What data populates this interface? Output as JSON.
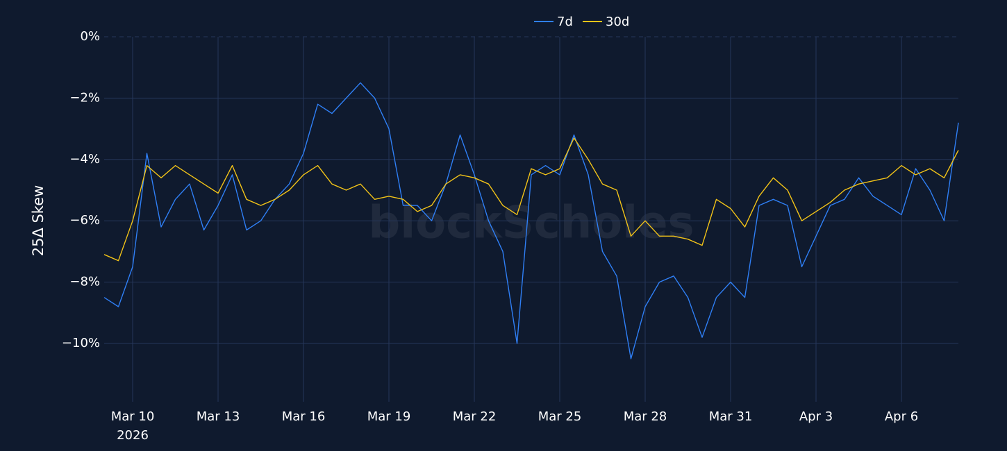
{
  "chart_data": {
    "type": "line",
    "y_label": "25Δ Skew",
    "watermark": "blockScholes",
    "x_year": "2026",
    "x": [
      "2026-03-09T00:00",
      "2026-03-09T12:00",
      "2026-03-10T00:00",
      "2026-03-10T12:00",
      "2026-03-11T00:00",
      "2026-03-11T12:00",
      "2026-03-12T00:00",
      "2026-03-12T12:00",
      "2026-03-13T00:00",
      "2026-03-13T12:00",
      "2026-03-14T00:00",
      "2026-03-14T12:00",
      "2026-03-15T00:00",
      "2026-03-15T12:00",
      "2026-03-16T00:00",
      "2026-03-16T12:00",
      "2026-03-17T00:00",
      "2026-03-17T12:00",
      "2026-03-18T00:00",
      "2026-03-18T12:00",
      "2026-03-19T00:00",
      "2026-03-19T12:00",
      "2026-03-20T00:00",
      "2026-03-20T12:00",
      "2026-03-21T00:00",
      "2026-03-21T12:00",
      "2026-03-22T00:00",
      "2026-03-22T12:00",
      "2026-03-23T00:00",
      "2026-03-23T12:00",
      "2026-03-24T00:00",
      "2026-03-24T12:00",
      "2026-03-25T00:00",
      "2026-03-25T12:00",
      "2026-03-26T00:00",
      "2026-03-26T12:00",
      "2026-03-27T00:00",
      "2026-03-27T12:00",
      "2026-03-28T00:00",
      "2026-03-28T12:00",
      "2026-03-29T00:00",
      "2026-03-29T12:00",
      "2026-03-30T00:00",
      "2026-03-30T12:00",
      "2026-03-31T00:00",
      "2026-03-31T12:00",
      "2026-04-01T00:00",
      "2026-04-01T12:00",
      "2026-04-02T00:00",
      "2026-04-02T12:00",
      "2026-04-03T00:00",
      "2026-04-03T12:00",
      "2026-04-04T00:00",
      "2026-04-04T12:00",
      "2026-04-05T00:00",
      "2026-04-05T12:00",
      "2026-04-06T00:00",
      "2026-04-06T12:00",
      "2026-04-07T00:00",
      "2026-04-07T12:00",
      "2026-04-08T00:00"
    ],
    "series": [
      {
        "name": "7d",
        "color": "#2f7ff5",
        "values": [
          -8.5,
          -8.8,
          -7.5,
          -3.8,
          -6.2,
          -5.3,
          -4.8,
          -6.3,
          -5.5,
          -4.5,
          -6.3,
          -6.0,
          -5.3,
          -4.8,
          -3.8,
          -2.2,
          -2.5,
          -2.0,
          -1.5,
          -2.0,
          -3.0,
          -5.5,
          -5.5,
          -6.0,
          -4.8,
          -3.2,
          -4.5,
          -6.0,
          -7.0,
          -10.0,
          -4.5,
          -4.2,
          -4.5,
          -3.2,
          -4.5,
          -7.0,
          -7.8,
          -10.5,
          -8.8,
          -8.0,
          -7.8,
          -8.5,
          -9.8,
          -8.5,
          -8.0,
          -8.5,
          -5.5,
          -5.3,
          -5.5,
          -7.5,
          -6.5,
          -5.5,
          -5.3,
          -4.6,
          -5.2,
          -5.5,
          -5.8,
          -4.3,
          -5.0,
          -6.0,
          -2.8
        ]
      },
      {
        "name": "30d",
        "color": "#f2c318",
        "values": [
          -7.1,
          -7.3,
          -6.0,
          -4.2,
          -4.6,
          -4.2,
          -4.5,
          -4.8,
          -5.1,
          -4.2,
          -5.3,
          -5.5,
          -5.3,
          -5.0,
          -4.5,
          -4.2,
          -4.8,
          -5.0,
          -4.8,
          -5.3,
          -5.2,
          -5.3,
          -5.7,
          -5.5,
          -4.8,
          -4.5,
          -4.6,
          -4.8,
          -5.5,
          -5.8,
          -4.3,
          -4.5,
          -4.3,
          -3.3,
          -4.0,
          -4.8,
          -5.0,
          -6.5,
          -6.0,
          -6.5,
          -6.5,
          -6.6,
          -6.8,
          -5.3,
          -5.6,
          -6.2,
          -5.2,
          -4.6,
          -5.0,
          -6.0,
          -5.7,
          -5.4,
          -5.0,
          -4.8,
          -4.7,
          -4.6,
          -4.2,
          -4.5,
          -4.3,
          -4.6,
          -3.7
        ]
      }
    ],
    "xlim": [
      "2026-03-09",
      "2026-04-08"
    ],
    "xticks": [
      {
        "value": "2026-03-10",
        "label": "Mar 10"
      },
      {
        "value": "2026-03-13",
        "label": "Mar 13"
      },
      {
        "value": "2026-03-16",
        "label": "Mar 16"
      },
      {
        "value": "2026-03-19",
        "label": "Mar 19"
      },
      {
        "value": "2026-03-22",
        "label": "Mar 22"
      },
      {
        "value": "2026-03-25",
        "label": "Mar 25"
      },
      {
        "value": "2026-03-28",
        "label": "Mar 28"
      },
      {
        "value": "2026-03-31",
        "label": "Mar 31"
      },
      {
        "value": "2026-04-03",
        "label": "Apr 3"
      },
      {
        "value": "2026-04-06",
        "label": "Apr 6"
      }
    ],
    "ylim": [
      -11.9,
      0
    ],
    "yticks": [
      {
        "value": 0,
        "label": "0%"
      },
      {
        "value": -2,
        "label": "−2%"
      },
      {
        "value": -4,
        "label": "−4%"
      },
      {
        "value": -6,
        "label": "−6%"
      },
      {
        "value": -8,
        "label": "−8%"
      },
      {
        "value": -10,
        "label": "−10%"
      }
    ],
    "grid": true,
    "legend": "top"
  }
}
